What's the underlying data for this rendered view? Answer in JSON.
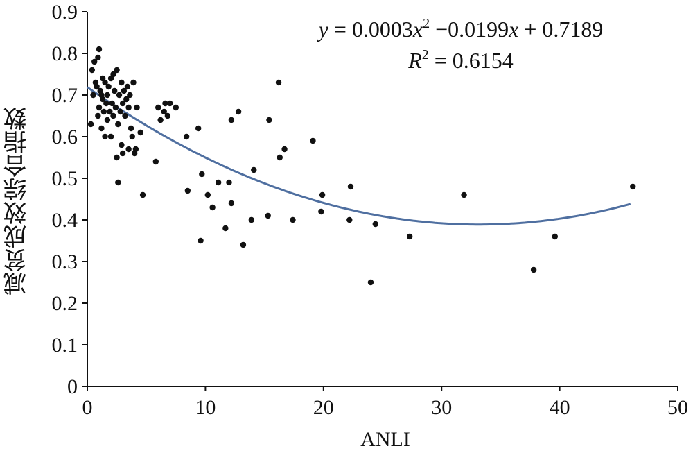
{
  "chart_data": {
    "type": "scatter",
    "title": "",
    "xlabel": "ANLI",
    "ylabel": "减贫成效综合指数",
    "xlim": [
      0,
      50
    ],
    "ylim": [
      0,
      0.9
    ],
    "xticks": [
      "0",
      "10",
      "20",
      "30",
      "40",
      "50"
    ],
    "yticks": [
      "0",
      "0.1",
      "0.2",
      "0.3",
      "0.4",
      "0.5",
      "0.6",
      "0.7",
      "0.8",
      "0.9"
    ],
    "grid": false,
    "colors": {
      "points": "#111111",
      "trendline": "#4f6fa0"
    },
    "trendline": {
      "type": "polynomial",
      "coefficients": {
        "a": 0.0003,
        "b": -0.0199,
        "c": 0.7189
      },
      "x_range": [
        0,
        46
      ]
    },
    "equation": {
      "line1": {
        "y": "y",
        "eq": " = 0.0003",
        "x1": "x",
        "sup": "2",
        "mid": " −0.0199",
        "x2": "x",
        "tail": " + 0.7189"
      },
      "line2": {
        "r": "R",
        "sup": "2",
        "tail": " = 0.6154"
      }
    },
    "points": [
      {
        "x": 0.3,
        "y": 0.63
      },
      {
        "x": 0.4,
        "y": 0.76
      },
      {
        "x": 0.5,
        "y": 0.7
      },
      {
        "x": 0.6,
        "y": 0.78
      },
      {
        "x": 0.7,
        "y": 0.73
      },
      {
        "x": 0.8,
        "y": 0.72
      },
      {
        "x": 0.9,
        "y": 0.65
      },
      {
        "x": 0.9,
        "y": 0.79
      },
      {
        "x": 1.0,
        "y": 0.81
      },
      {
        "x": 1.0,
        "y": 0.67
      },
      {
        "x": 1.1,
        "y": 0.71
      },
      {
        "x": 1.2,
        "y": 0.7
      },
      {
        "x": 1.2,
        "y": 0.62
      },
      {
        "x": 1.3,
        "y": 0.74
      },
      {
        "x": 1.3,
        "y": 0.69
      },
      {
        "x": 1.4,
        "y": 0.66
      },
      {
        "x": 1.5,
        "y": 0.73
      },
      {
        "x": 1.5,
        "y": 0.6
      },
      {
        "x": 1.6,
        "y": 0.68
      },
      {
        "x": 1.7,
        "y": 0.7
      },
      {
        "x": 1.7,
        "y": 0.64
      },
      {
        "x": 1.8,
        "y": 0.72
      },
      {
        "x": 1.9,
        "y": 0.66
      },
      {
        "x": 2.0,
        "y": 0.6
      },
      {
        "x": 2.0,
        "y": 0.74
      },
      {
        "x": 2.1,
        "y": 0.68
      },
      {
        "x": 2.2,
        "y": 0.65
      },
      {
        "x": 2.2,
        "y": 0.75
      },
      {
        "x": 2.3,
        "y": 0.71
      },
      {
        "x": 2.4,
        "y": 0.67
      },
      {
        "x": 2.5,
        "y": 0.55
      },
      {
        "x": 2.5,
        "y": 0.76
      },
      {
        "x": 2.6,
        "y": 0.63
      },
      {
        "x": 2.6,
        "y": 0.49
      },
      {
        "x": 2.7,
        "y": 0.7
      },
      {
        "x": 2.8,
        "y": 0.66
      },
      {
        "x": 2.9,
        "y": 0.73
      },
      {
        "x": 2.9,
        "y": 0.58
      },
      {
        "x": 3.0,
        "y": 0.68
      },
      {
        "x": 3.0,
        "y": 0.56
      },
      {
        "x": 3.1,
        "y": 0.71
      },
      {
        "x": 3.2,
        "y": 0.65
      },
      {
        "x": 3.3,
        "y": 0.69
      },
      {
        "x": 3.4,
        "y": 0.72
      },
      {
        "x": 3.5,
        "y": 0.57
      },
      {
        "x": 3.5,
        "y": 0.67
      },
      {
        "x": 3.6,
        "y": 0.7
      },
      {
        "x": 3.7,
        "y": 0.62
      },
      {
        "x": 3.8,
        "y": 0.6
      },
      {
        "x": 3.9,
        "y": 0.73
      },
      {
        "x": 4.0,
        "y": 0.56
      },
      {
        "x": 4.1,
        "y": 0.57
      },
      {
        "x": 4.2,
        "y": 0.67
      },
      {
        "x": 4.5,
        "y": 0.61
      },
      {
        "x": 4.7,
        "y": 0.46
      },
      {
        "x": 5.8,
        "y": 0.54
      },
      {
        "x": 6.0,
        "y": 0.67
      },
      {
        "x": 6.2,
        "y": 0.64
      },
      {
        "x": 6.5,
        "y": 0.66
      },
      {
        "x": 6.6,
        "y": 0.68
      },
      {
        "x": 6.8,
        "y": 0.65
      },
      {
        "x": 7.0,
        "y": 0.68
      },
      {
        "x": 7.5,
        "y": 0.67
      },
      {
        "x": 8.4,
        "y": 0.6
      },
      {
        "x": 8.5,
        "y": 0.47
      },
      {
        "x": 9.4,
        "y": 0.62
      },
      {
        "x": 9.6,
        "y": 0.35
      },
      {
        "x": 9.7,
        "y": 0.51
      },
      {
        "x": 10.2,
        "y": 0.46
      },
      {
        "x": 10.6,
        "y": 0.43
      },
      {
        "x": 11.1,
        "y": 0.49
      },
      {
        "x": 11.7,
        "y": 0.38
      },
      {
        "x": 12.0,
        "y": 0.49
      },
      {
        "x": 12.2,
        "y": 0.64
      },
      {
        "x": 12.2,
        "y": 0.44
      },
      {
        "x": 12.8,
        "y": 0.66
      },
      {
        "x": 13.2,
        "y": 0.34
      },
      {
        "x": 13.9,
        "y": 0.4
      },
      {
        "x": 14.1,
        "y": 0.52
      },
      {
        "x": 15.3,
        "y": 0.41
      },
      {
        "x": 15.4,
        "y": 0.64
      },
      {
        "x": 16.2,
        "y": 0.73
      },
      {
        "x": 16.3,
        "y": 0.55
      },
      {
        "x": 16.7,
        "y": 0.57
      },
      {
        "x": 17.4,
        "y": 0.4
      },
      {
        "x": 19.1,
        "y": 0.59
      },
      {
        "x": 19.8,
        "y": 0.42
      },
      {
        "x": 19.9,
        "y": 0.46
      },
      {
        "x": 22.2,
        "y": 0.4
      },
      {
        "x": 22.3,
        "y": 0.48
      },
      {
        "x": 24.0,
        "y": 0.25
      },
      {
        "x": 24.4,
        "y": 0.39
      },
      {
        "x": 27.3,
        "y": 0.36
      },
      {
        "x": 31.9,
        "y": 0.46
      },
      {
        "x": 37.8,
        "y": 0.28
      },
      {
        "x": 39.6,
        "y": 0.36
      },
      {
        "x": 46.2,
        "y": 0.48
      }
    ]
  }
}
